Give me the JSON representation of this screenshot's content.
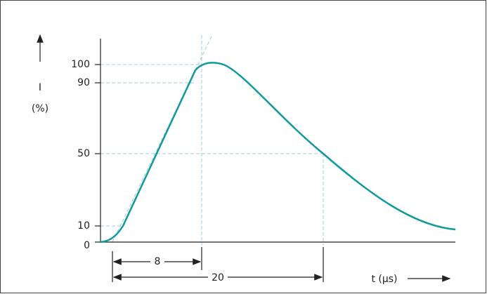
{
  "axes": {
    "y_label": "I",
    "y_unit": "(%)",
    "x_label": "t (µs)"
  },
  "y_ticks": [
    "100",
    "90",
    "50",
    "10",
    "0"
  ],
  "dimensions": {
    "front_time": "8",
    "half_time": "20"
  }
}
